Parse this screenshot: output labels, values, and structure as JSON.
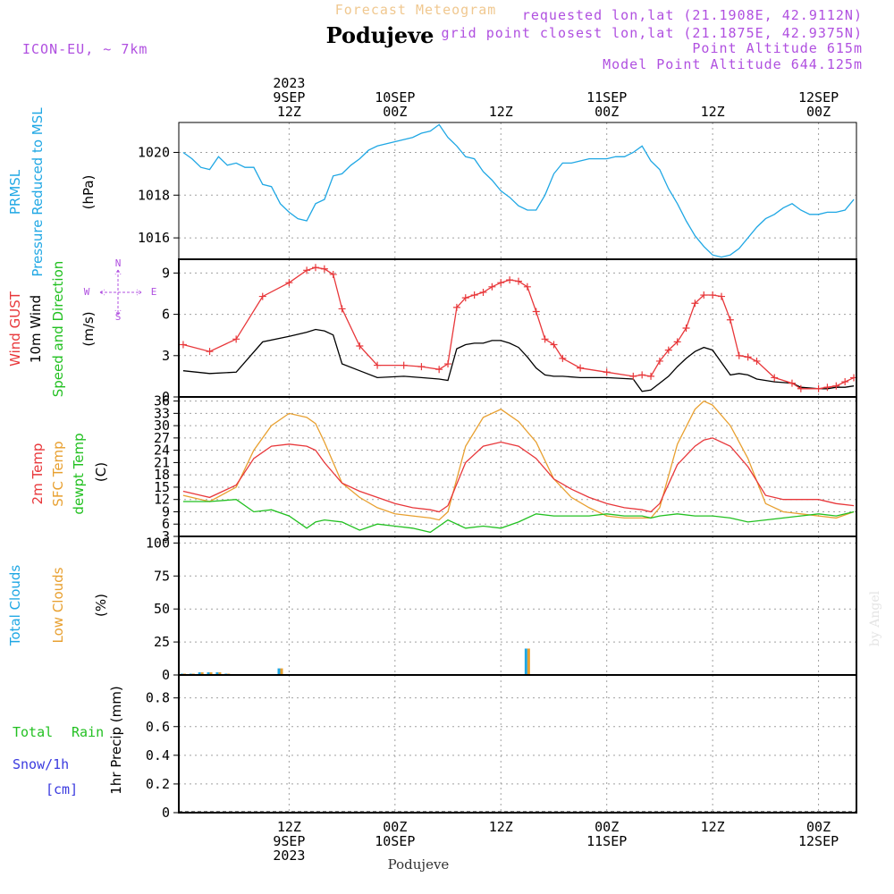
{
  "header": {
    "forecast_title": "Forecast Meteogram",
    "location": "Podujeve",
    "model": "ICON-EU, ~ 7km",
    "requested": "requested lon,lat (21.1908E, 42.9112N)",
    "grid_point": "grid point closest lon,lat (21.1875E, 42.9375N)",
    "point_alt": "Point Altitude 615m",
    "model_alt": "Model Point Altitude 644.125m",
    "credit": "by Angel",
    "footer_location": "Podujeve"
  },
  "time_axis": {
    "top": [
      {
        "t": 12,
        "lines": [
          "2023",
          "9SEP",
          "12Z"
        ]
      },
      {
        "t": 24,
        "lines": [
          "10SEP",
          "00Z"
        ]
      },
      {
        "t": 36,
        "lines": [
          "12Z"
        ]
      },
      {
        "t": 48,
        "lines": [
          "11SEP",
          "00Z"
        ]
      },
      {
        "t": 60,
        "lines": [
          "12Z"
        ]
      },
      {
        "t": 72,
        "lines": [
          "12SEP",
          "00Z"
        ]
      }
    ],
    "bottom": [
      {
        "t": 12,
        "lines": [
          "12Z",
          "9SEP",
          "2023"
        ]
      },
      {
        "t": 24,
        "lines": [
          "00Z",
          "10SEP"
        ]
      },
      {
        "t": 36,
        "lines": [
          "12Z"
        ]
      },
      {
        "t": 48,
        "lines": [
          "00Z",
          "11SEP"
        ]
      },
      {
        "t": 60,
        "lines": [
          "12Z"
        ]
      },
      {
        "t": 72,
        "lines": [
          "00Z",
          "12SEP"
        ]
      }
    ]
  },
  "panels": {
    "pressure": {
      "labels": [
        "PRMSL",
        "Pressure Reduced to MSL",
        "(hPa)"
      ],
      "ticks": [
        "1016",
        "1018",
        "1020"
      ]
    },
    "wind": {
      "labels": [
        "Wind GUST",
        "10m Wind",
        "Speed and Direction",
        "(m/s)"
      ],
      "ticks": [
        "0",
        "3",
        "6",
        "9"
      ],
      "compass": {
        "n": "N",
        "s": "S",
        "w": "W",
        "e": "E"
      }
    },
    "temp": {
      "labels": [
        "2m Temp",
        "SFC Temp",
        "dewpt Temp",
        "(C)"
      ],
      "ticks": [
        "3",
        "6",
        "9",
        "12",
        "15",
        "18",
        "21",
        "24",
        "27",
        "30",
        "33",
        "36"
      ]
    },
    "clouds": {
      "labels": [
        "Total Clouds",
        "Low Clouds",
        "(%)"
      ],
      "ticks": [
        "0",
        "25",
        "50",
        "75",
        "100"
      ]
    },
    "precip": {
      "labels": [
        "Total",
        "Rain",
        "Snow/1h",
        "[cm]",
        "1hr Precip (mm)"
      ],
      "ticks": [
        "0",
        "0.2",
        "0.4",
        "0.6",
        "0.8"
      ]
    }
  },
  "colors": {
    "pressure": "#1fa7e4",
    "gust": "#e8373a",
    "wind": "#000000",
    "sfc": "#e8a030",
    "dewpt": "#22c021",
    "total_clouds": "#1fa7e4",
    "low_clouds": "#e8a030",
    "rain": "#22c021",
    "snow": "#3a3adf",
    "label_purple": "#b050e0",
    "title_orange": "#f0c890"
  },
  "chart_data": [
    {
      "type": "line",
      "name": "PRMSL",
      "x_unit": "hours from 2023-09-09 00Z",
      "x": [
        0,
        1,
        2,
        3,
        4,
        5,
        6,
        7,
        8,
        9,
        10,
        11,
        12,
        13,
        14,
        15,
        16,
        17,
        18,
        19,
        20,
        21,
        22,
        23,
        24,
        25,
        26,
        27,
        28,
        29,
        30,
        31,
        32,
        33,
        34,
        35,
        36,
        37,
        38,
        39,
        40,
        41,
        42,
        43,
        44,
        45,
        46,
        47,
        48,
        49,
        50,
        51,
        52,
        53,
        54,
        55,
        56,
        57,
        58,
        59,
        60,
        61,
        62,
        63,
        64,
        65,
        66,
        67,
        68,
        69,
        70,
        71,
        72,
        73,
        74,
        75,
        76
      ],
      "y": [
        1020.0,
        1019.7,
        1019.3,
        1019.2,
        1019.8,
        1019.4,
        1019.5,
        1019.3,
        1019.3,
        1018.5,
        1018.4,
        1017.6,
        1017.2,
        1016.9,
        1016.8,
        1017.6,
        1017.8,
        1018.9,
        1019.0,
        1019.4,
        1019.7,
        1020.1,
        1020.3,
        1020.4,
        1020.5,
        1020.6,
        1020.7,
        1020.9,
        1021.0,
        1021.3,
        1020.7,
        1020.3,
        1019.8,
        1019.7,
        1019.1,
        1018.7,
        1018.2,
        1017.9,
        1017.5,
        1017.3,
        1017.3,
        1018.0,
        1019.0,
        1019.5,
        1019.5,
        1019.6,
        1019.7,
        1019.7,
        1019.7,
        1019.8,
        1019.8,
        1020.0,
        1020.3,
        1019.6,
        1019.2,
        1018.3,
        1017.6,
        1016.8,
        1016.1,
        1015.6,
        1015.2,
        1015.1,
        1015.2,
        1015.5,
        1016.0,
        1016.5,
        1016.9,
        1017.1,
        1017.4,
        1017.6,
        1017.3,
        1017.1,
        1017.1,
        1017.2,
        1017.2,
        1017.3,
        1017.8
      ],
      "ylim": [
        1015,
        1021.4
      ]
    },
    {
      "type": "line",
      "name": "Wind",
      "x_unit": "hours from 2023-09-09 00Z",
      "x": [
        0,
        3,
        6,
        9,
        12,
        14,
        15,
        16,
        17,
        18,
        20,
        22,
        25,
        27,
        29,
        30,
        31,
        32,
        33,
        34,
        35,
        36,
        37,
        38,
        39,
        40,
        41,
        42,
        43,
        45,
        48,
        51,
        52,
        53,
        54,
        55,
        56,
        57,
        58,
        59,
        60,
        61,
        62,
        63,
        64,
        65,
        67,
        69,
        70,
        72,
        73,
        74,
        75,
        76
      ],
      "gust": [
        3.8,
        3.3,
        4.2,
        7.3,
        8.3,
        9.2,
        9.4,
        9.3,
        8.9,
        6.4,
        3.7,
        2.3,
        2.3,
        2.2,
        2.0,
        2.4,
        6.5,
        7.2,
        7.4,
        7.6,
        8.0,
        8.3,
        8.5,
        8.4,
        8.0,
        6.2,
        4.2,
        3.8,
        2.8,
        2.1,
        1.8,
        1.5,
        1.6,
        1.5,
        2.6,
        3.4,
        4.0,
        5.0,
        6.8,
        7.4,
        7.4,
        7.3,
        5.6,
        3.0,
        2.9,
        2.6,
        1.4,
        1.0,
        0.6,
        0.6,
        0.7,
        0.8,
        1.1,
        1.4
      ],
      "wind": [
        1.9,
        1.7,
        1.8,
        4.0,
        4.4,
        4.7,
        4.9,
        4.8,
        4.5,
        2.4,
        1.9,
        1.4,
        1.5,
        1.4,
        1.3,
        1.2,
        3.5,
        3.8,
        3.9,
        3.9,
        4.1,
        4.1,
        3.9,
        3.6,
        2.9,
        2.1,
        1.6,
        1.5,
        1.5,
        1.4,
        1.4,
        1.3,
        0.4,
        0.5,
        1.0,
        1.5,
        2.2,
        2.8,
        3.3,
        3.6,
        3.4,
        2.5,
        1.6,
        1.7,
        1.6,
        1.3,
        1.1,
        1.0,
        0.7,
        0.6,
        0.6,
        0.7,
        0.7,
        0.8
      ],
      "ylim": [
        0,
        10
      ]
    },
    {
      "type": "line",
      "name": "Temperatures",
      "x_unit": "hours from 2023-09-09 00Z",
      "x": [
        0,
        2,
        3,
        6,
        8,
        10,
        12,
        14,
        15,
        16,
        18,
        20,
        22,
        24,
        26,
        28,
        29,
        30,
        32,
        34,
        36,
        38,
        40,
        42,
        44,
        46,
        48,
        50,
        52,
        53,
        54,
        56,
        58,
        59,
        60,
        62,
        64,
        66,
        68,
        70,
        72,
        74,
        76
      ],
      "t2m": [
        14.0,
        13.0,
        12.5,
        15.5,
        22.0,
        25.0,
        25.5,
        25.0,
        24.0,
        21.0,
        16.0,
        14.0,
        12.5,
        11.0,
        10.0,
        9.5,
        9.0,
        10.5,
        21.0,
        25.0,
        26.0,
        25.0,
        22.0,
        17.0,
        14.5,
        12.5,
        11.0,
        10.0,
        9.5,
        9.0,
        11.0,
        20.5,
        25.0,
        26.5,
        27.0,
        25.0,
        20.0,
        13.0,
        12.0,
        12.0,
        12.0,
        11.0,
        10.5
      ],
      "sfc": [
        13.0,
        12.0,
        11.5,
        15.0,
        24.0,
        30.0,
        33.0,
        32.0,
        30.5,
        26.0,
        16.0,
        12.5,
        10.0,
        8.5,
        8.0,
        7.5,
        7.0,
        9.0,
        25.0,
        32.0,
        34.0,
        31.0,
        26.0,
        17.0,
        12.5,
        10.0,
        8.0,
        7.5,
        7.5,
        7.5,
        10.0,
        25.5,
        34.0,
        36.0,
        35.0,
        30.0,
        22.0,
        11.0,
        9.0,
        8.5,
        8.0,
        7.5,
        9.0
      ],
      "dewpt": [
        11.5,
        11.5,
        11.5,
        12.0,
        9.0,
        9.5,
        8.0,
        5.0,
        6.5,
        7.0,
        6.5,
        4.5,
        6.0,
        5.5,
        5.0,
        4.0,
        5.5,
        7.0,
        5.0,
        5.5,
        5.0,
        6.5,
        8.5,
        8.0,
        8.0,
        8.0,
        8.5,
        8.0,
        8.0,
        7.5,
        8.0,
        8.5,
        8.0,
        8.0,
        8.0,
        7.5,
        6.5,
        7.0,
        7.5,
        8.0,
        8.5,
        8.0,
        9.0
      ],
      "ylim": [
        3,
        37
      ]
    },
    {
      "type": "bar",
      "name": "Clouds",
      "x_unit": "hours from 2023-09-09 00Z",
      "x": [
        0,
        1,
        2,
        3,
        4,
        5,
        11,
        39
      ],
      "total_clouds": [
        1,
        1,
        2,
        2,
        2,
        1,
        5,
        20
      ],
      "low_clouds": [
        1,
        1,
        2,
        2,
        2,
        1,
        5,
        20
      ],
      "ylim": [
        0,
        100
      ]
    },
    {
      "type": "bar",
      "name": "1hr Precip",
      "x_unit": "hours from 2023-09-09 00Z",
      "rain": [],
      "snow": [],
      "ylim": [
        0,
        1
      ]
    }
  ]
}
